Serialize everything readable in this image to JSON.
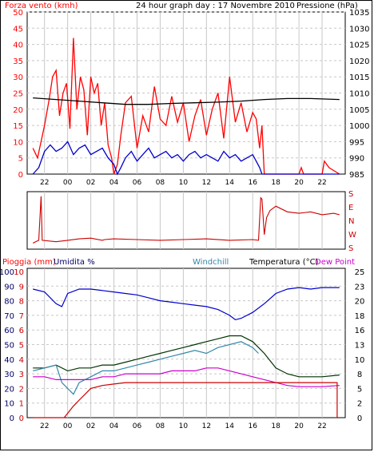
{
  "chart_data": [
    {
      "type": "line",
      "title": "24 hour graph day : 17 Novembre 2010",
      "left_axis_label": "Forza vento (kmh)",
      "right_axis_label": "Pressione (hPa)",
      "left_axis_ticks": [
        "50",
        "45",
        "40",
        "35",
        "30",
        "25",
        "20",
        "15",
        "10",
        "5",
        "0"
      ],
      "right_axis_ticks": [
        "1035",
        "1030",
        "1025",
        "1020",
        "1015",
        "1010",
        "1005",
        "1000",
        "995",
        "990",
        "985"
      ],
      "x_ticks": [
        "22",
        "00",
        "02",
        "04",
        "06",
        "08",
        "10",
        "12",
        "14",
        "16",
        "18",
        "20",
        "22"
      ],
      "ylim_left": [
        0,
        50
      ],
      "ylim_right": [
        985,
        1035
      ],
      "colors": {
        "gust": "#ff0000",
        "avg": "#0000cc",
        "pressure": "#000000"
      },
      "series": [
        {
          "key": "gust",
          "color": "#ff0000",
          "x": [
            -3,
            -2.6,
            -2,
            -1.6,
            -1.3,
            -1,
            -0.7,
            -0.4,
            -0.1,
            0.2,
            0.5,
            0.8,
            1.1,
            1.4,
            1.7,
            2,
            2.3,
            2.6,
            2.9,
            3.2,
            3.5,
            3.8,
            4,
            4.3,
            4.6,
            5,
            5.5,
            6,
            6.5,
            7,
            7.5,
            8,
            8.5,
            9,
            9.5,
            10,
            10.5,
            11,
            11.5,
            12,
            12.5,
            13,
            13.5,
            14,
            14.5,
            15,
            15.5,
            16,
            16.3,
            16.6,
            16.8,
            17,
            18,
            20,
            20.2,
            20.4,
            22,
            22.2,
            22.6,
            23.5
          ],
          "y": [
            8,
            5,
            15,
            23,
            30,
            32,
            18,
            25,
            28,
            14,
            42,
            20,
            30,
            26,
            12,
            30,
            25,
            28,
            15,
            22,
            9,
            5,
            0,
            3,
            12,
            22,
            24,
            8,
            18,
            13,
            27,
            17,
            15,
            24,
            16,
            22,
            10,
            18,
            23,
            12,
            20,
            25,
            11,
            30,
            16,
            22,
            13,
            19,
            17,
            8,
            15,
            0,
            0,
            0,
            2,
            0,
            0,
            4,
            2,
            0
          ]
        },
        {
          "key": "avg",
          "color": "#0000cc",
          "x": [
            -3,
            -2.5,
            -2,
            -1.5,
            -1,
            -0.5,
            0,
            0.5,
            1,
            1.5,
            2,
            2.5,
            3,
            3.5,
            4,
            4.3,
            4.6,
            5,
            5.5,
            6,
            6.5,
            7,
            7.5,
            8,
            8.5,
            9,
            9.5,
            10,
            10.5,
            11,
            11.5,
            12,
            12.5,
            13,
            13.5,
            14,
            14.5,
            15,
            15.5,
            16,
            16.3,
            16.6,
            16.8,
            17,
            18,
            19,
            20,
            21,
            22,
            23,
            23.5
          ],
          "y": [
            0,
            2,
            7,
            9,
            7,
            8,
            10,
            6,
            8,
            9,
            6,
            7,
            8,
            5,
            3,
            0,
            2,
            5,
            7,
            4,
            6,
            8,
            5,
            6,
            7,
            5,
            6,
            4,
            6,
            7,
            5,
            6,
            5,
            4,
            7,
            5,
            6,
            4,
            5,
            6,
            4,
            2,
            0,
            0,
            0,
            0,
            0,
            0,
            0,
            0,
            0
          ]
        },
        {
          "key": "pressure",
          "color": "#000000",
          "x": [
            -3,
            -1,
            1,
            3,
            5,
            7,
            9,
            11,
            13,
            15,
            17,
            19,
            21,
            23.5
          ],
          "y": [
            1008.5,
            1008,
            1007.5,
            1007,
            1006.5,
            1006.5,
            1006.8,
            1007,
            1007.2,
            1007.5,
            1008,
            1008.3,
            1008.3,
            1008
          ]
        }
      ]
    },
    {
      "type": "line",
      "title": "",
      "right_axis_ticks": [
        "S",
        "E",
        "N",
        "W",
        "S"
      ],
      "ylim": [
        0,
        360
      ],
      "series": [
        {
          "key": "direction",
          "color": "#cc0000",
          "x": [
            -3,
            -2.5,
            -2.3,
            -2.2,
            -1,
            0,
            1,
            2,
            3,
            3.2,
            4,
            6,
            8,
            10,
            12,
            14,
            16,
            16.5,
            16.7,
            16.8,
            17,
            17.2,
            17.5,
            18,
            19,
            20,
            21,
            22,
            23,
            23.5
          ],
          "y": [
            20,
            40,
            350,
            40,
            30,
            40,
            50,
            55,
            40,
            45,
            50,
            45,
            40,
            45,
            50,
            40,
            45,
            40,
            340,
            330,
            80,
            200,
            250,
            280,
            240,
            230,
            240,
            220,
            230,
            220
          ]
        }
      ]
    },
    {
      "type": "line",
      "title": "",
      "left_labels": [
        "Pioggia (mm)",
        "Umidita %"
      ],
      "right_labels": [
        "Windchill",
        "Temperatura (°C)",
        "Dew Point"
      ],
      "left_axis_ticks": [
        "100",
        "90",
        "80",
        "70",
        "60",
        "50",
        "40",
        "30",
        "20",
        "10",
        "0"
      ],
      "left_axis_ticks2": [
        "10",
        "9",
        "8",
        "7",
        "6",
        "5",
        "4",
        "3",
        "2",
        "1",
        "0"
      ],
      "right_axis_ticks": [
        "25",
        "23",
        "20",
        "18",
        "16",
        "13",
        "10",
        "8",
        "5",
        "2",
        "0"
      ],
      "ylim_left": [
        0,
        100
      ],
      "ylim_right": [
        0,
        25
      ],
      "colors": {
        "humidity": "#0000cc",
        "temperature": "#003300",
        "windchill": "#3388aa",
        "dewpoint": "#cc00cc",
        "rain": "#cc0000"
      },
      "series": [
        {
          "key": "humidity",
          "color": "#0000cc",
          "x": [
            -3,
            -2,
            -1,
            -0.5,
            0,
            1,
            2,
            3,
            4,
            5,
            6,
            7,
            8,
            9,
            10,
            11,
            12,
            13,
            14,
            14.5,
            15,
            16,
            17,
            18,
            19,
            20,
            21,
            22,
            23.5
          ],
          "y": [
            88,
            86,
            78,
            76,
            85,
            88,
            88,
            87,
            86,
            85,
            84,
            82,
            80,
            79,
            78,
            77,
            76,
            74,
            70,
            67,
            68,
            72,
            78,
            85,
            88,
            89,
            88,
            89,
            89
          ]
        },
        {
          "key": "temperature",
          "color": "#003300",
          "x": [
            -3,
            -2,
            -1,
            0,
            1,
            2,
            3,
            4,
            5,
            6,
            7,
            8,
            9,
            10,
            11,
            12,
            13,
            14,
            15,
            16,
            17,
            18,
            19,
            20,
            21,
            22,
            23.5
          ],
          "y": [
            8.5,
            8.5,
            9,
            8,
            8.5,
            8.5,
            9,
            9,
            9.5,
            10,
            10.5,
            11,
            11.5,
            12,
            12.5,
            13,
            13.5,
            14,
            14,
            13,
            11,
            8.5,
            7.5,
            7,
            7,
            7,
            7.3
          ]
        },
        {
          "key": "windchill",
          "color": "#3388aa",
          "x": [
            -3,
            -2,
            -1,
            -0.5,
            0,
            0.5,
            1,
            2,
            3,
            4,
            5,
            6,
            7,
            8,
            9,
            10,
            11,
            12,
            13,
            14,
            15,
            16,
            16.5
          ],
          "y": [
            8,
            8.5,
            9,
            6,
            5,
            4,
            6,
            7,
            8,
            8,
            8.5,
            9,
            9.5,
            10,
            10.5,
            11,
            11.5,
            11,
            12,
            12.5,
            13,
            12,
            11
          ]
        },
        {
          "key": "dewpoint",
          "color": "#cc00cc",
          "x": [
            -3,
            -2,
            -1,
            0,
            1,
            2,
            3,
            4,
            5,
            6,
            7,
            8,
            9,
            10,
            11,
            12,
            13,
            14,
            15,
            16,
            17,
            18,
            19,
            20,
            21,
            22,
            23.5
          ],
          "y": [
            7,
            7,
            6.5,
            6.5,
            6.5,
            6.5,
            7,
            7,
            7.5,
            7.5,
            7.5,
            7.5,
            8,
            8,
            8,
            8.5,
            8.5,
            8,
            7.5,
            7,
            6.5,
            6,
            5.5,
            5.3,
            5.3,
            5.3,
            5.5
          ]
        },
        {
          "key": "rain",
          "color": "#cc0000",
          "x": [
            -3,
            -0.3,
            -0.3,
            0,
            0.5,
            1,
            1.5,
            2,
            3,
            4,
            5,
            6,
            8,
            10,
            12,
            14,
            16,
            18,
            20,
            22,
            23.3,
            23.3
          ],
          "y": [
            0,
            0,
            0,
            0.3,
            0.8,
            1.2,
            1.6,
            2,
            2.2,
            2.3,
            2.4,
            2.4,
            2.4,
            2.4,
            2.4,
            2.4,
            2.4,
            2.4,
            2.4,
            2.4,
            2.4,
            0
          ]
        }
      ]
    }
  ]
}
